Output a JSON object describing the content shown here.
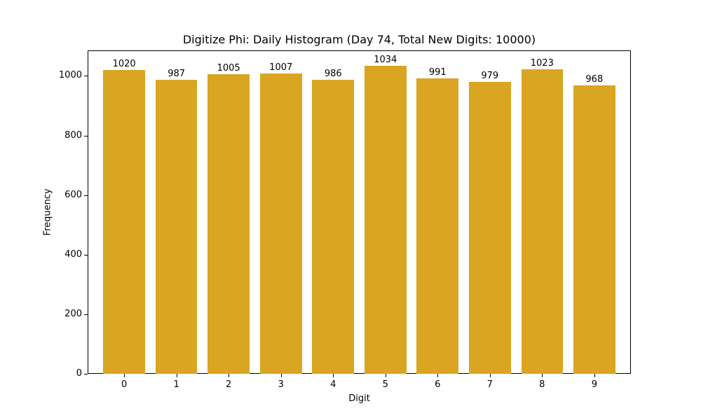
{
  "chart_data": {
    "type": "bar",
    "title": "Digitize Phi: Daily Histogram (Day 74, Total New Digits: 10000)",
    "xlabel": "Digit",
    "ylabel": "Frequency",
    "categories": [
      "0",
      "1",
      "2",
      "3",
      "4",
      "5",
      "6",
      "7",
      "8",
      "9"
    ],
    "values": [
      1020,
      987,
      1005,
      1007,
      986,
      1034,
      991,
      979,
      1023,
      968
    ],
    "value_labels": [
      "1020",
      "987",
      "1005",
      "1007",
      "986",
      "1034",
      "991",
      "979",
      "1023",
      "968"
    ],
    "yticks": [
      0,
      200,
      400,
      600,
      800,
      1000
    ],
    "ytick_labels": [
      "0",
      "200",
      "400",
      "600",
      "800",
      "1000"
    ],
    "ylim": [
      0,
      1085.7
    ],
    "xlim": [
      -0.7,
      9.7
    ],
    "bar_width": 0.8,
    "bar_color": "#DAA520",
    "grid": false,
    "legend": null
  }
}
